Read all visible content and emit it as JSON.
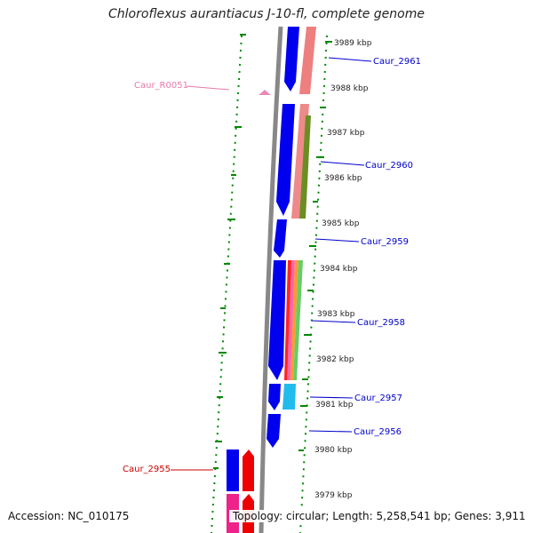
{
  "title": "Chloroflexus aurantiacus J-10-fl, complete genome",
  "footer": {
    "accession": "Accession: NC_010175",
    "summary": "Topology: circular; Length: 5,258,541 bp; Genes: 3,911"
  },
  "scale_ticks": [
    "3989 kbp",
    "3988 kbp",
    "3987 kbp",
    "3986 kbp",
    "3985 kbp",
    "3984 kbp",
    "3983 kbp",
    "3982 kbp",
    "3981 kbp",
    "3980 kbp",
    "3979 kbp"
  ],
  "gene_labels": [
    {
      "text": "Caur_2961",
      "color": "#0000cc"
    },
    {
      "text": "Caur_R0051",
      "color": "#e87aa8"
    },
    {
      "text": "Caur_2960",
      "color": "#0000cc"
    },
    {
      "text": "Caur_2959",
      "color": "#0000cc"
    },
    {
      "text": "Caur_2958",
      "color": "#0000cc"
    },
    {
      "text": "Caur_2957",
      "color": "#0000cc"
    },
    {
      "text": "Caur_2956",
      "color": "#0000cc"
    },
    {
      "text": "Caur_2955",
      "color": "#cc0000"
    }
  ],
  "colors": {
    "gene_forward": "#0000ee",
    "gene_reverse": "#ee0000",
    "rna": "#e98ab8",
    "backbone": "#888888",
    "gc_ticks": "#008800",
    "tick_label": "#222222"
  }
}
